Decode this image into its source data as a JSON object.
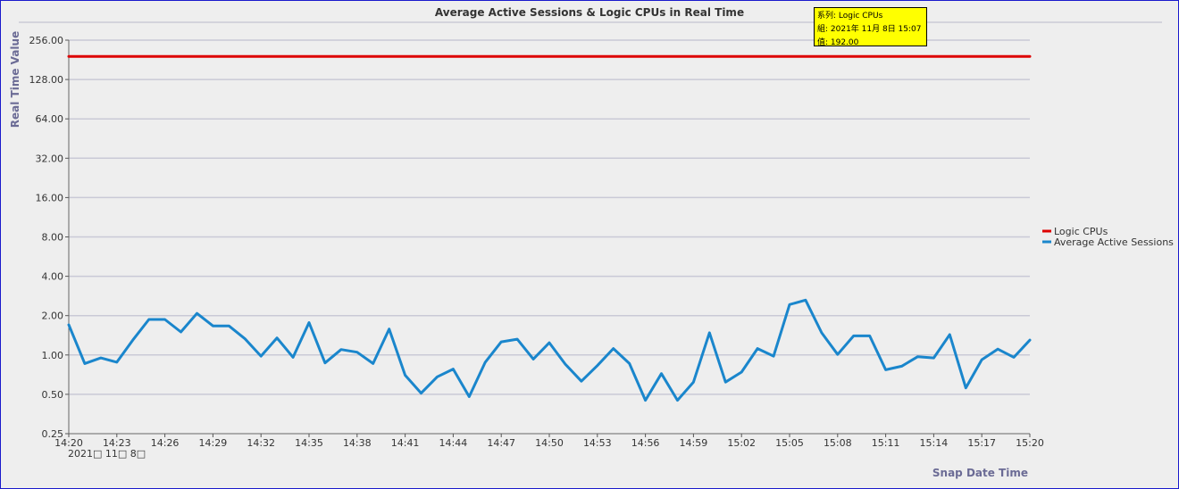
{
  "chart_data": {
    "type": "line",
    "title": "Average Active Sessions & Logic CPUs in Real Time",
    "ylabel": "Real Time Value",
    "xlabel": "Snap Date Time",
    "y_scale": "log2",
    "ylim": [
      0.25,
      256
    ],
    "y_ticks": [
      "256.00",
      "128.00",
      "64.00",
      "32.00",
      "16.00",
      "8.00",
      "4.00",
      "2.00",
      "1.00",
      "0.50",
      "0.25"
    ],
    "y_tick_values": [
      256,
      128,
      64,
      32,
      16,
      8,
      4,
      2,
      1,
      0.5,
      0.25
    ],
    "x_ticks": [
      "14:20",
      "14:23",
      "14:26",
      "14:29",
      "14:32",
      "14:35",
      "14:38",
      "14:41",
      "14:44",
      "14:47",
      "14:50",
      "14:53",
      "14:56",
      "14:59",
      "15:02",
      "15:05",
      "15:08",
      "15:11",
      "15:14",
      "15:17",
      "15:20"
    ],
    "x_date_label": "2021□ 11□ 8□",
    "grid": true,
    "legend_position": "right",
    "series": [
      {
        "name": "Logic CPUs",
        "color": "#dd0000",
        "x": [
          "14:20",
          "15:20"
        ],
        "values": [
          192,
          192
        ]
      },
      {
        "name": "Average Active Sessions",
        "color": "#1a86cc",
        "x": [
          "14:20",
          "14:21",
          "14:22",
          "14:23",
          "14:24",
          "14:25",
          "14:26",
          "14:27",
          "14:28",
          "14:29",
          "14:30",
          "14:31",
          "14:32",
          "14:33",
          "14:34",
          "14:35",
          "14:36",
          "14:37",
          "14:38",
          "14:39",
          "14:40",
          "14:41",
          "14:42",
          "14:43",
          "14:44",
          "14:45",
          "14:46",
          "14:47",
          "14:48",
          "14:49",
          "14:50",
          "14:51",
          "14:52",
          "14:53",
          "14:54",
          "14:55",
          "14:56",
          "14:57",
          "14:58",
          "14:59",
          "15:00",
          "15:01",
          "15:02",
          "15:03",
          "15:04",
          "15:05",
          "15:06",
          "15:07",
          "15:08",
          "15:09",
          "15:10",
          "15:11",
          "15:12",
          "15:13",
          "15:14",
          "15:15",
          "15:16",
          "15:17",
          "15:18",
          "15:19",
          "15:20"
        ],
        "values": [
          1.7,
          0.86,
          0.95,
          0.88,
          1.3,
          1.87,
          1.87,
          1.5,
          2.08,
          1.67,
          1.67,
          1.33,
          0.98,
          1.35,
          0.96,
          1.77,
          0.87,
          1.1,
          1.05,
          0.86,
          1.58,
          0.7,
          0.51,
          0.68,
          0.78,
          0.48,
          0.88,
          1.26,
          1.32,
          0.93,
          1.24,
          0.85,
          0.63,
          0.83,
          1.12,
          0.86,
          0.45,
          0.72,
          0.45,
          0.62,
          1.48,
          0.62,
          0.74,
          1.12,
          0.98,
          2.43,
          2.63,
          1.48,
          1.01,
          1.4,
          1.4,
          0.77,
          0.82,
          0.97,
          0.95,
          1.43,
          0.56,
          0.92,
          1.11,
          0.96,
          1.3
        ]
      }
    ]
  },
  "tooltip": {
    "series_line": "系列: Logic CPUs",
    "group_line": "組: 2021年 11月 8日 15:07",
    "value_line": "值: 192.00"
  }
}
